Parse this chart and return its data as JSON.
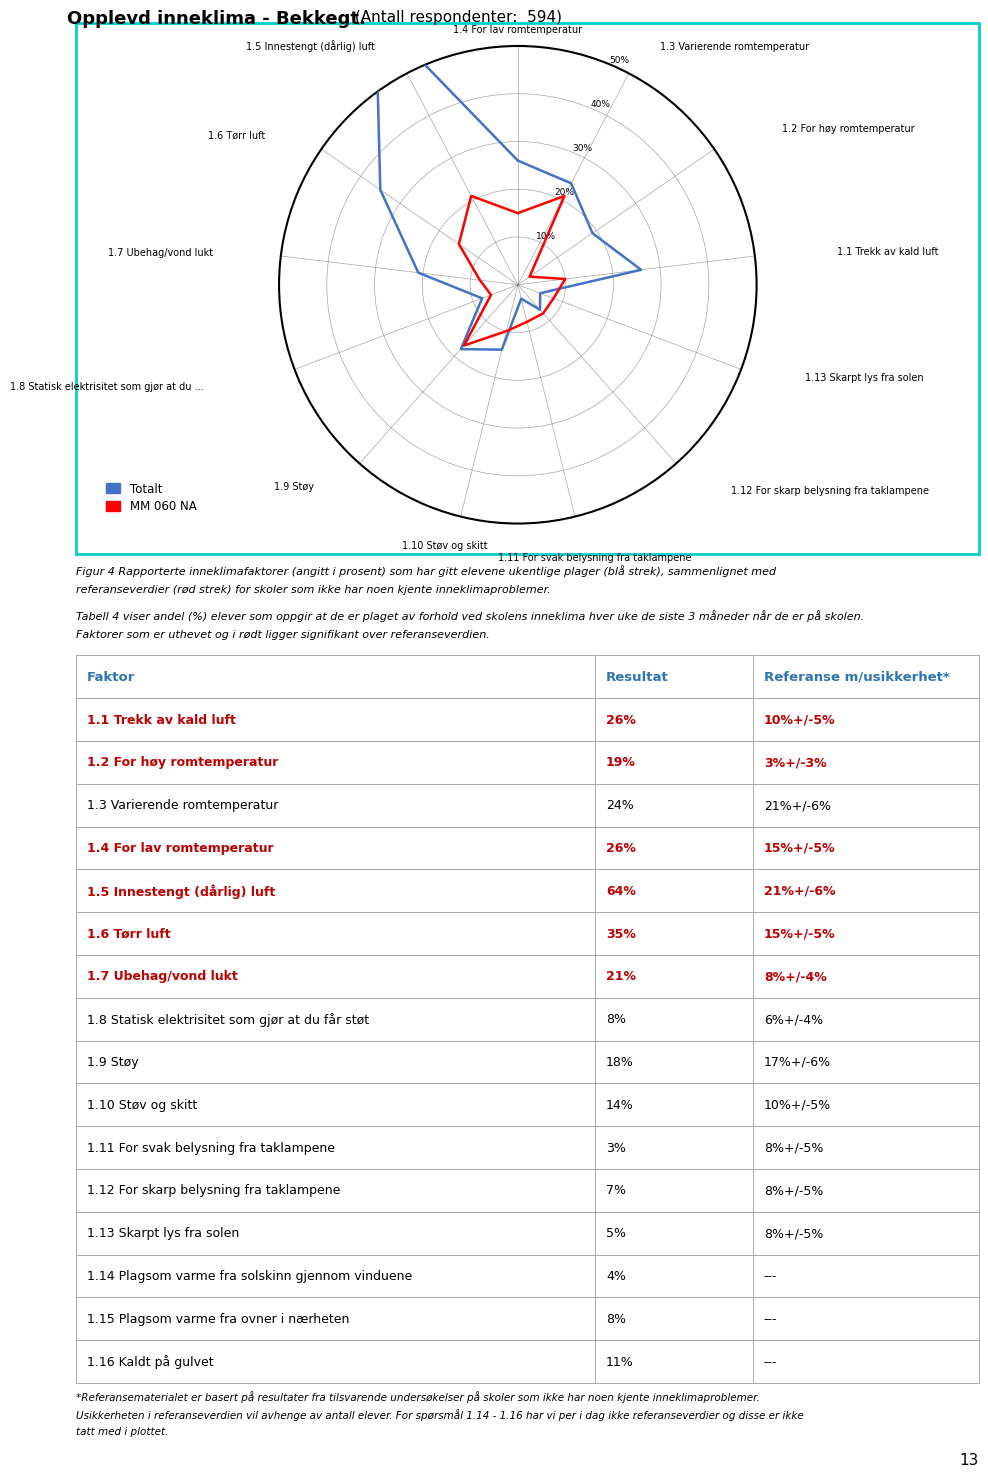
{
  "title_bold": "Opplevd inneklima - Bekkegt.",
  "title_normal": " (Antall respondenter:  594)",
  "radar_labels": [
    "1.4 For lav romtemperatur",
    "1.3 Varierende romtemperatur",
    "1.2 For høy romtemperatur",
    "1.1 Trekk av kald luft",
    "1.13 Skarpt lys fra solen",
    "1.12 For skarp belysning fra taklampene",
    "1.11 For svak belysning fra taklampene",
    "1.10 Støv og skitt",
    "1.9 Støy",
    "1.8 Statisk elektrisitet som gjør at du ...",
    "1.7 Ubehag/vond lukt",
    "1.6 Tørr luft",
    "1.5 Innestengt (dårlig) luft"
  ],
  "radar_values_blue": [
    26,
    24,
    19,
    26,
    5,
    7,
    3,
    14,
    18,
    8,
    21,
    35,
    64
  ],
  "radar_values_red": [
    15,
    21,
    3,
    10,
    8,
    8,
    8,
    10,
    17,
    6,
    8,
    15,
    21
  ],
  "radar_max": 50,
  "radar_ticks": [
    0,
    10,
    20,
    30,
    40,
    50
  ],
  "legend_blue": "Totalt",
  "legend_red": "MM 060 NA",
  "fig_caption1": "Figur 4 Rapporterte inneklimafaktorer (angitt i prosent) som har gitt elevene ukentlige plager (blå strek), sammenlignet med",
  "fig_caption2": "referanseverdier (rød strek) for skoler som ikke har noen kjente inneklimaproblemer.",
  "table_caption1": "Tabell 4 viser andel (%) elever som oppgir at de er plaget av forhold ved skolens inneklima hver uke de siste 3 måneder når de er på skolen.",
  "table_caption2": "Faktorer som er uthevet og i rødt ligger signifikant over referanseverdien.",
  "table_headers": [
    "Faktor",
    "Resultat",
    "Referanse m/usikkerhet*"
  ],
  "table_rows": [
    {
      "factor": "1.1 Trekk av kald luft",
      "resultat": "26%",
      "referanse": "10%+/-5%",
      "highlight": true
    },
    {
      "factor": "1.2 For høy romtemperatur",
      "resultat": "19%",
      "referanse": "3%+/-3%",
      "highlight": true
    },
    {
      "factor": "1.3 Varierende romtemperatur",
      "resultat": "24%",
      "referanse": "21%+/-6%",
      "highlight": false
    },
    {
      "factor": "1.4 For lav romtemperatur",
      "resultat": "26%",
      "referanse": "15%+/-5%",
      "highlight": true
    },
    {
      "factor": "1.5 Innestengt (dårlig) luft",
      "resultat": "64%",
      "referanse": "21%+/-6%",
      "highlight": true
    },
    {
      "factor": "1.6 Tørr luft",
      "resultat": "35%",
      "referanse": "15%+/-5%",
      "highlight": true
    },
    {
      "factor": "1.7 Ubehag/vond lukt",
      "resultat": "21%",
      "referanse": "8%+/-4%",
      "highlight": true
    },
    {
      "factor": "1.8 Statisk elektrisitet som gjør at du får støt",
      "resultat": "8%",
      "referanse": "6%+/-4%",
      "highlight": false
    },
    {
      "factor": "1.9 Støy",
      "resultat": "18%",
      "referanse": "17%+/-6%",
      "highlight": false
    },
    {
      "factor": "1.10 Støv og skitt",
      "resultat": "14%",
      "referanse": "10%+/-5%",
      "highlight": false
    },
    {
      "factor": "1.11 For svak belysning fra taklampene",
      "resultat": "3%",
      "referanse": "8%+/-5%",
      "highlight": false
    },
    {
      "factor": "1.12 For skarp belysning fra taklampene",
      "resultat": "7%",
      "referanse": "8%+/-5%",
      "highlight": false
    },
    {
      "factor": "1.13 Skarpt lys fra solen",
      "resultat": "5%",
      "referanse": "8%+/-5%",
      "highlight": false
    },
    {
      "factor": "1.14 Plagsom varme fra solskinn gjennom vinduene",
      "resultat": "4%",
      "referanse": "---",
      "highlight": false
    },
    {
      "factor": "1.15 Plagsom varme fra ovner i nærheten",
      "resultat": "8%",
      "referanse": "---",
      "highlight": false
    },
    {
      "factor": "1.16 Kaldt på gulvet",
      "resultat": "11%",
      "referanse": "---",
      "highlight": false
    }
  ],
  "footnote_line1": "*Referansematerialet er basert på resultater fra tilsvarende undersøkelser på skoler som ikke har noen kjente inneklimaproblemer.",
  "footnote_line2": "Usikkerheten i referanseverdien vil avhenge av antall elever. For spørsmål 1.14 - 1.16 har vi per i dag ikke referanseverdier og disse er ikke",
  "footnote_line3": "tatt med i plottet.",
  "page_number": "13",
  "border_color": "#00CFCF",
  "blue_line_color": "#4472C4",
  "red_line_color": "#FF0000",
  "header_text_color": "#2E75B6",
  "highlight_color": "#C00000",
  "normal_color": "#000000",
  "bg_color": "#FFFFFF"
}
